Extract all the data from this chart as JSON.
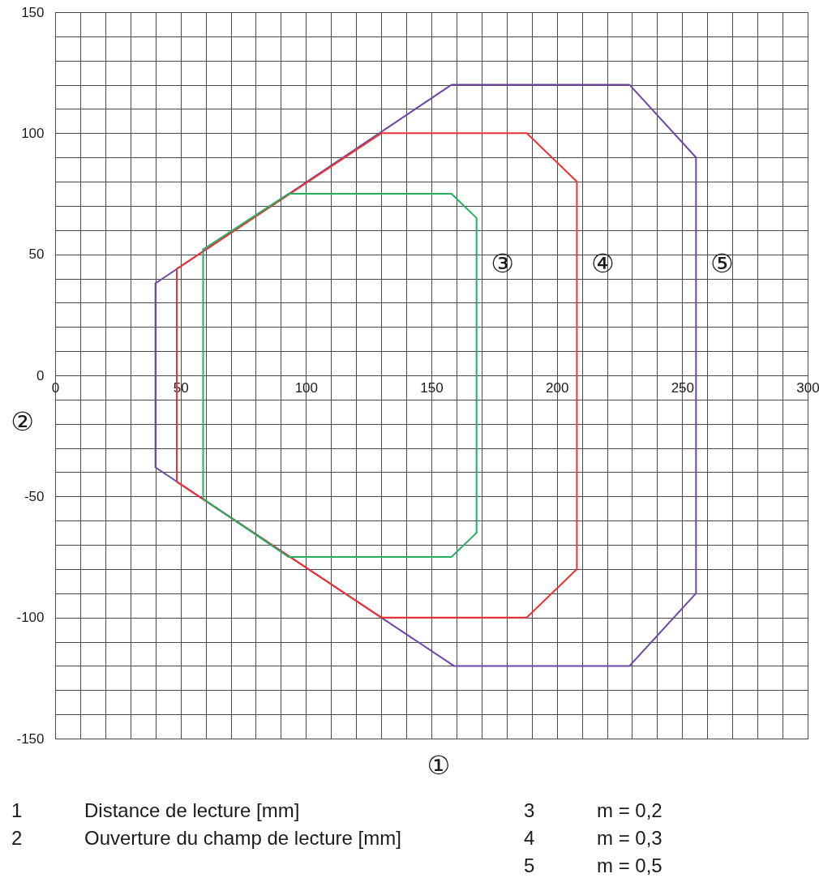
{
  "chart_data": {
    "type": "line",
    "xlabel": "①",
    "ylabel": "②",
    "annotations": [
      "1",
      "Distance de lecture [mm]",
      "2",
      "Ouverture du champ de lecture [mm]",
      "3",
      "m = 0,2",
      "4",
      "m = 0,3",
      "5",
      "m = 0,5"
    ],
    "series": [
      {
        "name": "⑤",
        "color": "#6f46a6",
        "x": [
          40,
          158,
          229,
          255.5,
          255.5
        ],
        "values": [
          38,
          120,
          120,
          90,
          -90
        ]
      },
      {
        "color": "#6f46a6",
        "x": [
          40,
          40,
          159,
          229,
          255.5
        ],
        "values": [
          38,
          -38,
          -120,
          -120,
          -90
        ]
      },
      {
        "name": "④",
        "color": "#ef3232",
        "x": [
          48.5,
          130,
          188,
          208,
          208
        ],
        "values": [
          44,
          100,
          100,
          80,
          -80
        ]
      },
      {
        "color": "#ef3232",
        "x": [
          48.5,
          48.5,
          130,
          188,
          208
        ],
        "values": [
          44,
          -44,
          -100,
          -100,
          -80
        ]
      },
      {
        "name": "③",
        "color": "#27ae60",
        "x": [
          59,
          93,
          158,
          168,
          168
        ],
        "values": [
          52,
          75,
          75,
          65,
          -65
        ]
      },
      {
        "color": "#27ae60",
        "x": [
          59,
          59,
          93,
          158,
          168
        ],
        "values": [
          52,
          -51,
          -75,
          -75,
          -65
        ]
      }
    ],
    "xlim": [
      0,
      300
    ],
    "ylim": [
      -150,
      150
    ],
    "xticks": [
      0,
      {
        "value": 10,
        "label": null
      },
      {
        "value": 20,
        "label": null
      },
      {
        "value": 30,
        "label": null
      },
      {
        "value": 40,
        "label": null
      },
      50,
      {
        "value": 60,
        "label": null
      },
      {
        "value": 70,
        "label": null
      },
      {
        "value": 80,
        "label": null
      },
      {
        "value": 90,
        "label": null
      },
      100,
      {
        "value": 110,
        "label": null
      },
      {
        "value": 120,
        "label": null
      },
      {
        "value": 130,
        "label": null
      },
      {
        "value": 140,
        "label": null
      },
      150,
      {
        "value": 160,
        "label": null
      },
      {
        "value": 170,
        "label": null
      },
      {
        "value": 180,
        "label": null
      },
      {
        "value": 190,
        "label": null
      },
      200,
      {
        "value": 210,
        "label": null
      },
      {
        "value": 220,
        "label": null
      },
      {
        "value": 230,
        "label": null
      },
      {
        "value": 240,
        "label": null
      },
      250,
      {
        "value": 260,
        "label": null
      },
      {
        "value": 270,
        "label": null
      },
      {
        "value": 280,
        "label": null
      },
      {
        "value": 290,
        "label": null
      },
      300
    ],
    "yticks": [
      -150,
      {
        "value": -140,
        "label": null
      },
      {
        "value": -130,
        "label": null
      },
      {
        "value": -120,
        "label": null
      },
      {
        "value": -110,
        "label": null
      },
      -100,
      {
        "value": -90,
        "label": null
      },
      {
        "value": -80,
        "label": null
      },
      {
        "value": -70,
        "label": null
      },
      {
        "value": -60,
        "label": null
      },
      -50,
      {
        "value": -40,
        "label": null
      },
      {
        "value": -30,
        "label": null
      },
      {
        "value": -20,
        "label": null
      },
      {
        "value": -10,
        "label": null
      },
      0,
      {
        "value": 10,
        "label": null
      },
      {
        "value": 20,
        "label": null
      },
      {
        "value": 30,
        "label": null
      },
      {
        "value": 40,
        "label": null
      },
      50,
      {
        "value": 60,
        "label": null
      },
      {
        "value": 70,
        "label": null
      },
      {
        "value": 80,
        "label": null
      },
      {
        "value": 90,
        "label": null
      },
      100,
      {
        "value": 110,
        "label": null
      },
      {
        "value": 120,
        "label": null
      },
      {
        "value": 130,
        "label": null
      },
      {
        "value": 140,
        "label": null
      },
      150
    ],
    "grid": true
  }
}
